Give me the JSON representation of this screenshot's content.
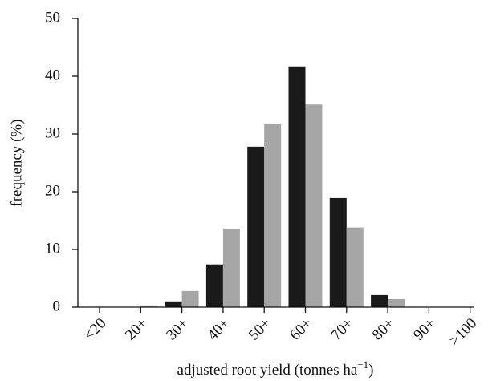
{
  "chart_data": {
    "type": "bar",
    "categories": [
      "<20",
      "20+",
      "30+",
      "40+",
      "50+",
      "60+",
      "70+",
      "80+",
      "90+",
      ">100"
    ],
    "series": [
      {
        "color": "#1a1a1a",
        "values": [
          0,
          0,
          1.0,
          7.4,
          27.8,
          41.7,
          18.9,
          2.1,
          0,
          0
        ]
      },
      {
        "color": "#a6a6a6",
        "values": [
          0,
          0.3,
          2.8,
          13.6,
          31.7,
          35.1,
          13.8,
          1.4,
          0,
          0
        ]
      }
    ],
    "ylim": [
      0,
      50
    ],
    "yticks": [
      0,
      10,
      20,
      30,
      40,
      50
    ],
    "ylabel": "frequency (%)",
    "xlabel": {
      "text": "adjusted root yield (tonnes ha",
      "superscript": "−1",
      "suffix": ")"
    },
    "grid": false
  }
}
